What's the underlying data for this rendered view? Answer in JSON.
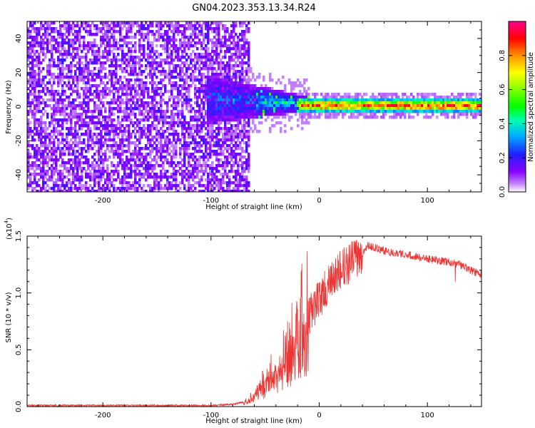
{
  "figure_title": "GN04.2023.353.13.34.R24",
  "colors": {
    "snr_line": "#ee3333",
    "colormap": [
      "#ffffff",
      "#8a00ff",
      "#2020ff",
      "#00d0ff",
      "#00ff40",
      "#ffff00",
      "#ff8000",
      "#ff0000",
      "#ff0090"
    ]
  },
  "chart_data": [
    {
      "type": "heatmap",
      "title": "",
      "xlabel": "Height of straight line (km)",
      "ylabel": "Frequency (Hz)",
      "xlim": [
        -270,
        150
      ],
      "ylim": [
        -50,
        50
      ],
      "xticks": [
        -200,
        -100,
        0,
        100
      ],
      "yticks": [
        -40,
        -20,
        0,
        20,
        40
      ],
      "grid": false,
      "colorbar": {
        "label": "Normalized spectral amplitude",
        "range": [
          0.0,
          1.0
        ],
        "ticks": [
          "0.0",
          "0.2",
          "0.4",
          "0.6",
          "0.8"
        ]
      },
      "regions": [
        {
          "name": "noise",
          "x": [
            -270,
            -65
          ],
          "freq": [
            -50,
            50
          ],
          "amplitude": 0.15
        },
        {
          "name": "transition",
          "x": [
            -100,
            -15
          ],
          "freq_center": 6,
          "freq_halfwidth": 12,
          "amplitude": 0.35
        },
        {
          "name": "tone",
          "x": [
            -15,
            150
          ],
          "freq_center": 0,
          "freq_halfwidth": 2,
          "amplitude": 0.85
        }
      ]
    },
    {
      "type": "line",
      "title": "",
      "xlabel": "Height of straight line (km)",
      "ylabel": "SNR (10 * v/v)",
      "y_multiplier": "(x10",
      "y_multiplier_exp": "4",
      "y_multiplier_close": ")",
      "xlim": [
        -270,
        150
      ],
      "ylim": [
        0,
        1.5
      ],
      "xticks": [
        -200,
        -100,
        0,
        100
      ],
      "yticks": [
        "0.0",
        "0.5",
        "1.0",
        "1.5"
      ],
      "grid": false,
      "series": [
        {
          "x": [
            -270,
            -250,
            -200,
            -150,
            -100,
            -80,
            -70,
            -60,
            -50,
            -40,
            -30,
            -20,
            -10,
            0,
            10,
            20,
            30,
            40,
            45,
            60,
            80,
            100,
            120,
            130,
            140,
            150
          ],
          "y": [
            0.01,
            0.01,
            0.01,
            0.01,
            0.01,
            0.02,
            0.04,
            0.1,
            0.2,
            0.3,
            0.4,
            0.6,
            0.8,
            0.95,
            1.08,
            1.2,
            1.28,
            1.35,
            1.42,
            1.37,
            1.34,
            1.3,
            1.27,
            1.25,
            1.2,
            1.16
          ]
        }
      ]
    }
  ]
}
